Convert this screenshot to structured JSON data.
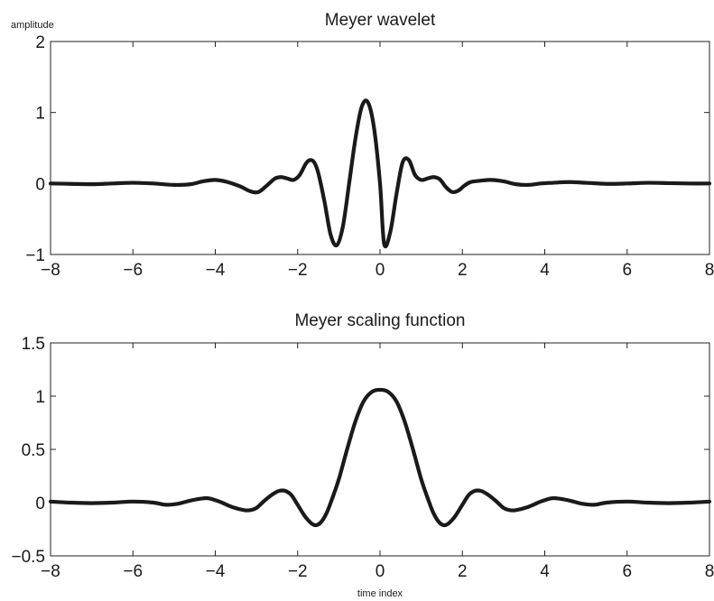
{
  "figure": {
    "ylabel_text": "amplitude",
    "xlabel_text": "time index"
  },
  "chart_data": [
    {
      "type": "line",
      "title": "Meyer wavelet",
      "xlim": [
        -8,
        8
      ],
      "ylim": [
        -1,
        2
      ],
      "xticks": [
        -8,
        -6,
        -4,
        -2,
        0,
        2,
        4,
        6,
        8
      ],
      "yticks": [
        -1,
        0,
        1,
        2
      ],
      "xtick_labels": [
        "−8",
        "−6",
        "−4",
        "−2",
        "0",
        "2",
        "4",
        "6",
        "8"
      ],
      "ytick_labels": [
        "−1",
        "0",
        "1",
        "2"
      ],
      "grid": false,
      "series": [
        {
          "color": "#1a1a1a",
          "x": [
            -8,
            -7.5,
            -7,
            -6.5,
            -6,
            -5.5,
            -5,
            -4.6,
            -4.3,
            -4,
            -3.7,
            -3.4,
            -3.15,
            -2.95,
            -2.75,
            -2.55,
            -2.4,
            -2.25,
            -2.1,
            -1.95,
            -1.8,
            -1.7,
            -1.6,
            -1.5,
            -1.35,
            -1.2,
            -1.05,
            -0.9,
            -0.75,
            -0.6,
            -0.45,
            -0.3,
            -0.15,
            0,
            0.1,
            0.25,
            0.4,
            0.55,
            0.7,
            0.85,
            1.0,
            1.15,
            1.3,
            1.45,
            1.6,
            1.75,
            1.9,
            2.05,
            2.2,
            2.45,
            2.7,
            3.0,
            3.3,
            3.6,
            3.9,
            4.2,
            4.6,
            5.0,
            5.5,
            6.0,
            6.5,
            7.0,
            7.5,
            8.0
          ],
          "y": [
            0.0,
            -0.005,
            -0.01,
            0.0,
            0.01,
            0.0,
            -0.02,
            -0.01,
            0.03,
            0.05,
            0.02,
            -0.04,
            -0.11,
            -0.12,
            -0.03,
            0.07,
            0.09,
            0.07,
            0.05,
            0.12,
            0.28,
            0.33,
            0.3,
            0.15,
            -0.25,
            -0.72,
            -0.87,
            -0.6,
            0.0,
            0.62,
            1.07,
            1.15,
            0.8,
            0.0,
            -0.85,
            -0.68,
            -0.15,
            0.3,
            0.33,
            0.12,
            0.05,
            0.07,
            0.09,
            0.06,
            -0.05,
            -0.12,
            -0.1,
            -0.03,
            0.02,
            0.04,
            0.05,
            0.03,
            -0.01,
            -0.02,
            0.0,
            0.01,
            0.02,
            0.01,
            -0.005,
            0.0,
            0.01,
            0.005,
            0.0,
            0.0
          ]
        }
      ]
    },
    {
      "type": "line",
      "title": "Meyer scaling function",
      "xlim": [
        -8,
        8
      ],
      "ylim": [
        -0.5,
        1.5
      ],
      "xticks": [
        -8,
        -6,
        -4,
        -2,
        0,
        2,
        4,
        6,
        8
      ],
      "yticks": [
        -0.5,
        0,
        0.5,
        1,
        1.5
      ],
      "xtick_labels": [
        "−8",
        "−6",
        "−4",
        "−2",
        "0",
        "2",
        "4",
        "6",
        "8"
      ],
      "ytick_labels": [
        "−0.5",
        "0",
        "0.5",
        "1",
        "1.5"
      ],
      "grid": false,
      "series": [
        {
          "color": "#1a1a1a",
          "x": [
            -8,
            -7.5,
            -7,
            -6.5,
            -6,
            -5.5,
            -5.2,
            -4.9,
            -4.6,
            -4.3,
            -4.15,
            -3.9,
            -3.6,
            -3.3,
            -3.15,
            -3.0,
            -2.8,
            -2.6,
            -2.45,
            -2.3,
            -2.15,
            -2.0,
            -1.8,
            -1.6,
            -1.45,
            -1.3,
            -1.15,
            -1.0,
            -0.8,
            -0.6,
            -0.4,
            -0.2,
            0,
            0.2,
            0.4,
            0.6,
            0.8,
            1.0,
            1.15,
            1.3,
            1.45,
            1.6,
            1.8,
            2.0,
            2.15,
            2.3,
            2.45,
            2.6,
            2.8,
            3.0,
            3.15,
            3.3,
            3.6,
            3.9,
            4.15,
            4.3,
            4.6,
            4.9,
            5.2,
            5.5,
            6.0,
            6.5,
            7.0,
            7.5,
            8.0
          ],
          "y": [
            0.01,
            0.0,
            -0.005,
            0.0,
            0.01,
            0.0,
            -0.02,
            -0.01,
            0.02,
            0.04,
            0.04,
            0.01,
            -0.04,
            -0.07,
            -0.07,
            -0.05,
            0.02,
            0.08,
            0.11,
            0.11,
            0.07,
            -0.02,
            -0.14,
            -0.21,
            -0.19,
            -0.1,
            0.05,
            0.22,
            0.5,
            0.76,
            0.95,
            1.04,
            1.06,
            1.04,
            0.95,
            0.76,
            0.5,
            0.22,
            0.05,
            -0.1,
            -0.19,
            -0.21,
            -0.14,
            -0.02,
            0.07,
            0.11,
            0.11,
            0.08,
            0.02,
            -0.05,
            -0.07,
            -0.07,
            -0.04,
            0.01,
            0.04,
            0.04,
            0.02,
            -0.01,
            -0.02,
            0.0,
            0.01,
            0.0,
            -0.005,
            0.0,
            0.01
          ]
        }
      ]
    }
  ]
}
